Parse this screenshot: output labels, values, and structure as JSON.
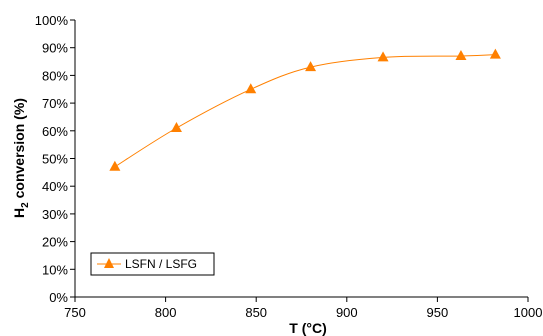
{
  "chart_data": {
    "type": "line",
    "xlabel": "T (°C)",
    "ylabel_main": "H",
    "ylabel_sub": "2",
    "ylabel_rest": " conversion (%)",
    "xlim": [
      750,
      1000
    ],
    "ylim": [
      0,
      100
    ],
    "x_ticks": [
      750,
      800,
      850,
      900,
      950,
      1000
    ],
    "y_ticks": [
      "0%",
      "10%",
      "20%",
      "30%",
      "40%",
      "50%",
      "60%",
      "70%",
      "80%",
      "90%",
      "100%"
    ],
    "grid": false,
    "legend_position": "bottom-left",
    "series": [
      {
        "name": "LSFN / LSFG",
        "color": "#ff8000",
        "marker": "triangle",
        "x": [
          772,
          806,
          847,
          880,
          920,
          963,
          982
        ],
        "y": [
          47,
          61,
          75,
          83,
          86.5,
          87,
          87.5
        ]
      }
    ]
  }
}
